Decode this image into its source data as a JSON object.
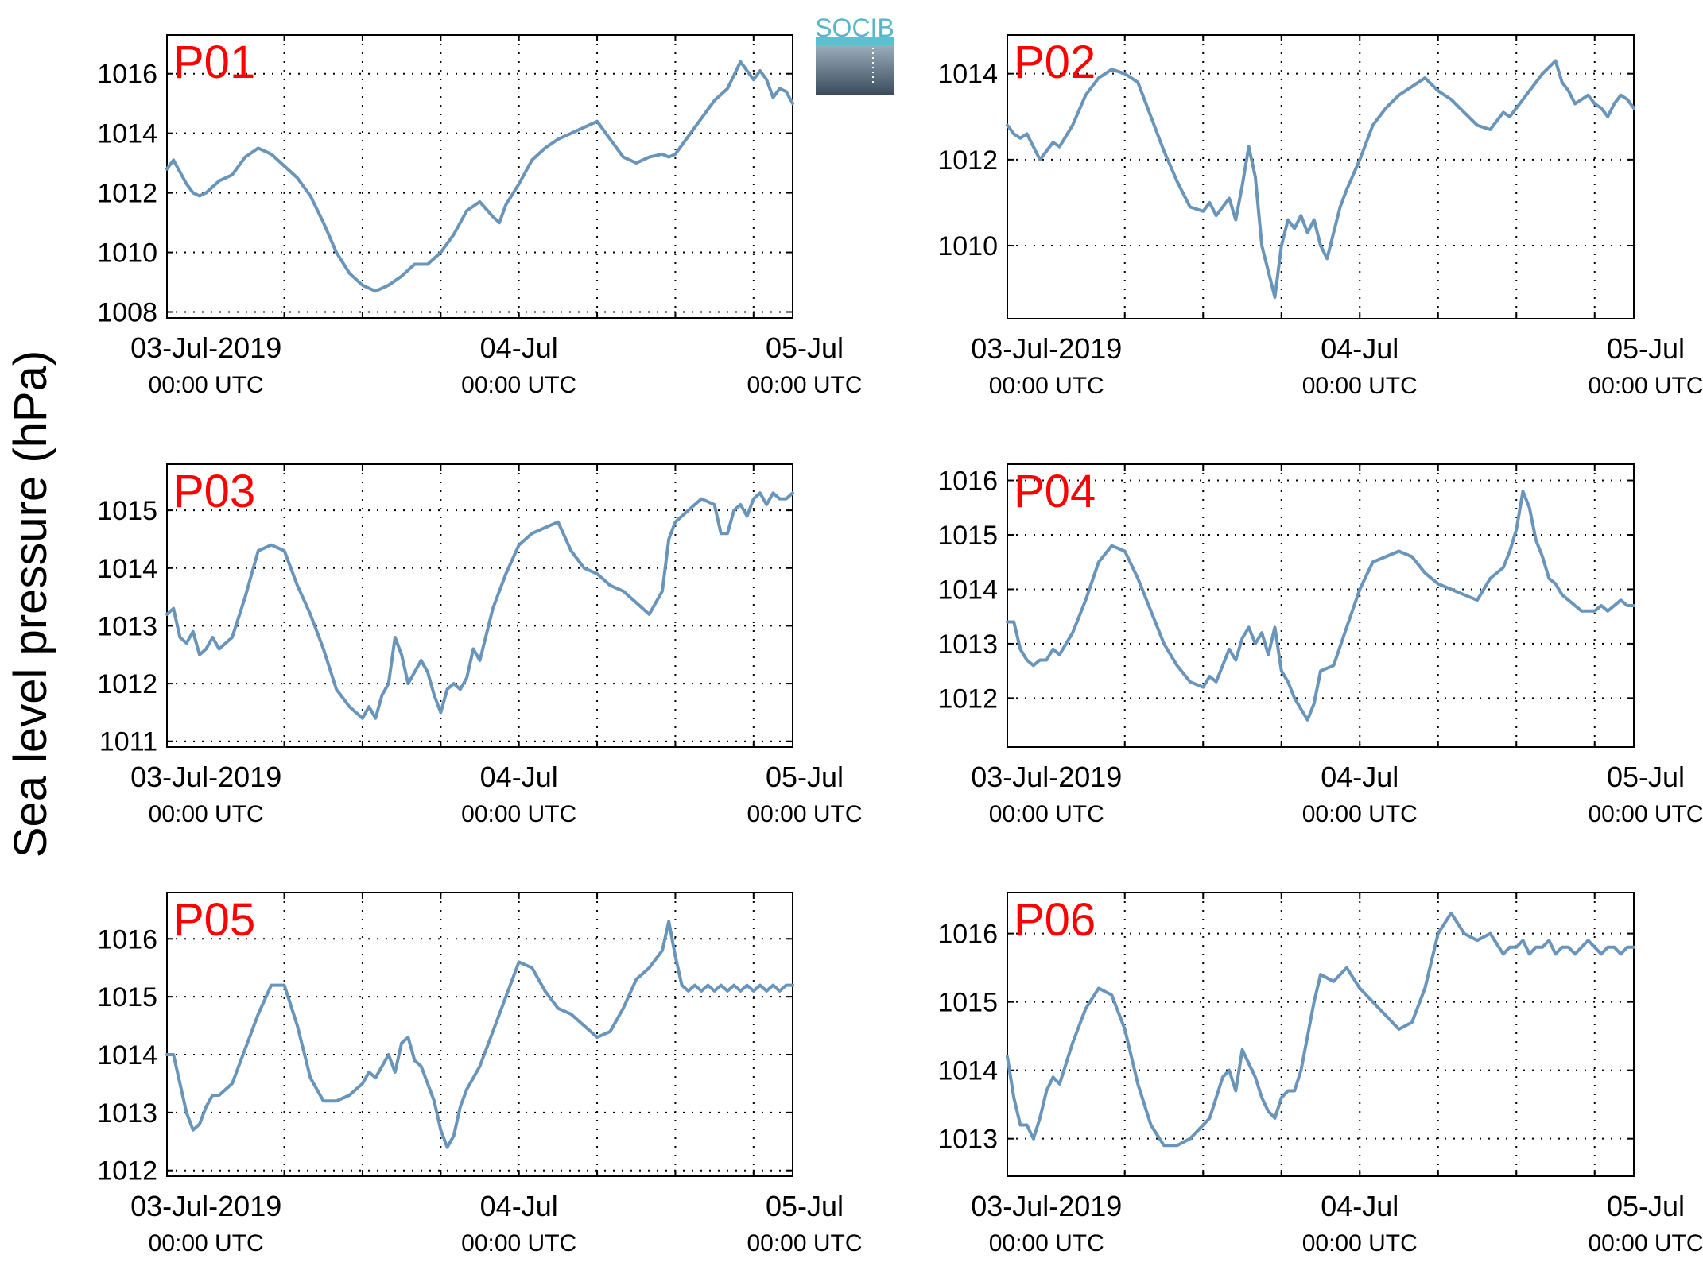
{
  "figure": {
    "ylabel": "Sea level pressure (hPa)",
    "logo_text": "SOCIB",
    "line_color": "#6a95bb",
    "label_color": "#ff0000",
    "x_tick_dates": [
      "03-Jul-2019",
      "04-Jul",
      "05-Jul"
    ],
    "x_tick_times": [
      "00:00 UTC",
      "00:00 UTC",
      "00:00 UTC"
    ]
  },
  "chart_data": [
    {
      "type": "line",
      "title": "P01",
      "xunit": "hours since 03-Jul-2019 00:00 UTC",
      "xlim": [
        -3,
        45
      ],
      "ylim": [
        1007.8,
        1017.3
      ],
      "yticks": [
        1008,
        1010,
        1012,
        1014,
        1016
      ],
      "grid": true,
      "x": [
        -3,
        -2.5,
        -2,
        -1.5,
        -1,
        -0.5,
        0,
        1,
        2,
        3,
        4,
        5,
        6,
        7,
        8,
        9,
        10,
        11,
        12,
        13,
        14,
        15,
        16,
        17,
        18,
        19,
        20,
        21,
        22,
        22.5,
        23,
        24,
        25,
        26,
        27,
        28,
        29,
        30,
        31,
        32,
        33,
        34,
        35,
        35.5,
        36,
        37,
        38,
        39,
        40,
        41,
        42,
        42.5,
        43,
        43.5,
        44,
        44.5,
        45
      ],
      "y": [
        1012.8,
        1013.1,
        1012.7,
        1012.3,
        1012.0,
        1011.9,
        1012.0,
        1012.4,
        1012.6,
        1013.2,
        1013.5,
        1013.3,
        1012.9,
        1012.5,
        1011.9,
        1011.0,
        1010.0,
        1009.3,
        1008.9,
        1008.7,
        1008.9,
        1009.2,
        1009.6,
        1009.6,
        1010.0,
        1010.6,
        1011.4,
        1011.7,
        1011.2,
        1011.0,
        1011.6,
        1012.3,
        1013.1,
        1013.5,
        1013.8,
        1014.0,
        1014.2,
        1014.4,
        1013.8,
        1013.2,
        1013.0,
        1013.2,
        1013.3,
        1013.2,
        1013.3,
        1013.9,
        1014.5,
        1015.1,
        1015.5,
        1016.4,
        1015.8,
        1016.1,
        1015.8,
        1015.2,
        1015.5,
        1015.4,
        1015.0
      ]
    },
    {
      "type": "line",
      "title": "P02",
      "xunit": "hours since 03-Jul-2019 00:00 UTC",
      "xlim": [
        -3,
        45
      ],
      "ylim": [
        1008.3,
        1014.9
      ],
      "yticks": [
        1010,
        1012,
        1014
      ],
      "grid": true,
      "x": [
        -3,
        -2.5,
        -2,
        -1.5,
        -1,
        -0.5,
        0,
        0.5,
        1,
        2,
        3,
        4,
        5,
        6,
        7,
        8,
        9,
        10,
        11,
        12,
        12.5,
        13,
        13.5,
        14,
        14.5,
        15,
        15.5,
        16,
        16.5,
        17,
        17.5,
        18,
        18.5,
        19,
        19.5,
        20,
        20.5,
        21,
        21.5,
        22,
        22.5,
        23,
        24,
        25,
        26,
        27,
        28,
        29,
        30,
        31,
        32,
        33,
        34,
        35,
        35.5,
        36,
        37,
        38,
        39,
        39.5,
        40,
        40.5,
        41,
        41.5,
        42,
        42.5,
        43,
        43.5,
        44,
        44.5,
        45
      ],
      "y": [
        1012.8,
        1012.6,
        1012.5,
        1012.6,
        1012.3,
        1012.0,
        1012.2,
        1012.4,
        1012.3,
        1012.8,
        1013.5,
        1013.9,
        1014.1,
        1014.0,
        1013.8,
        1013.0,
        1012.2,
        1011.5,
        1010.9,
        1010.8,
        1011.0,
        1010.7,
        1010.9,
        1011.1,
        1010.6,
        1011.4,
        1012.3,
        1011.6,
        1010.0,
        1009.4,
        1008.8,
        1010.0,
        1010.6,
        1010.4,
        1010.7,
        1010.3,
        1010.6,
        1010.0,
        1009.7,
        1010.3,
        1010.9,
        1011.3,
        1012.0,
        1012.8,
        1013.2,
        1013.5,
        1013.7,
        1013.9,
        1013.6,
        1013.4,
        1013.1,
        1012.8,
        1012.7,
        1013.1,
        1013.0,
        1013.2,
        1013.6,
        1014.0,
        1014.3,
        1013.8,
        1013.6,
        1013.3,
        1013.4,
        1013.5,
        1013.3,
        1013.2,
        1013.0,
        1013.3,
        1013.5,
        1013.4,
        1013.2
      ]
    },
    {
      "type": "line",
      "title": "P03",
      "xunit": "hours since 03-Jul-2019 00:00 UTC",
      "xlim": [
        -3,
        45
      ],
      "ylim": [
        1010.9,
        1015.8
      ],
      "yticks": [
        1011,
        1012,
        1013,
        1014,
        1015
      ],
      "grid": true,
      "x": [
        -3,
        -2.5,
        -2,
        -1.5,
        -1,
        -0.5,
        0,
        0.5,
        1,
        2,
        3,
        4,
        5,
        6,
        7,
        8,
        9,
        10,
        11,
        12,
        12.5,
        13,
        13.5,
        14,
        14.5,
        15,
        15.5,
        16,
        16.5,
        17,
        17.5,
        18,
        18.5,
        19,
        19.5,
        20,
        20.5,
        21,
        22,
        23,
        24,
        25,
        26,
        27,
        28,
        29,
        30,
        31,
        32,
        33,
        34,
        35,
        35.5,
        36,
        37,
        38,
        39,
        39.5,
        40,
        40.5,
        41,
        41.5,
        42,
        42.5,
        43,
        43.5,
        44,
        44.5,
        45
      ],
      "y": [
        1013.2,
        1013.3,
        1012.8,
        1012.7,
        1012.9,
        1012.5,
        1012.6,
        1012.8,
        1012.6,
        1012.8,
        1013.5,
        1014.3,
        1014.4,
        1014.3,
        1013.7,
        1013.2,
        1012.6,
        1011.9,
        1011.6,
        1011.4,
        1011.6,
        1011.4,
        1011.8,
        1012.0,
        1012.8,
        1012.5,
        1012.0,
        1012.2,
        1012.4,
        1012.2,
        1011.8,
        1011.5,
        1011.9,
        1012.0,
        1011.9,
        1012.1,
        1012.6,
        1012.4,
        1013.3,
        1013.9,
        1014.4,
        1014.6,
        1014.7,
        1014.8,
        1014.3,
        1014.0,
        1013.9,
        1013.7,
        1013.6,
        1013.4,
        1013.2,
        1013.6,
        1014.5,
        1014.8,
        1015.0,
        1015.2,
        1015.1,
        1014.6,
        1014.6,
        1015.0,
        1015.1,
        1014.9,
        1015.2,
        1015.3,
        1015.1,
        1015.3,
        1015.2,
        1015.2,
        1015.3
      ]
    },
    {
      "type": "line",
      "title": "P04",
      "xunit": "hours since 03-Jul-2019 00:00 UTC",
      "xlim": [
        -3,
        45
      ],
      "ylim": [
        1011.1,
        1016.3
      ],
      "yticks": [
        1012,
        1013,
        1014,
        1015,
        1016
      ],
      "grid": true,
      "x": [
        -3,
        -2.5,
        -2,
        -1.5,
        -1,
        -0.5,
        0,
        0.5,
        1,
        2,
        3,
        4,
        5,
        6,
        7,
        8,
        9,
        10,
        11,
        12,
        12.5,
        13,
        13.5,
        14,
        14.5,
        15,
        15.5,
        16,
        16.5,
        17,
        17.5,
        18,
        18.5,
        19,
        19.5,
        20,
        20.5,
        21,
        22,
        23,
        24,
        25,
        26,
        27,
        28,
        29,
        30,
        31,
        32,
        33,
        34,
        35,
        35.5,
        36,
        36.5,
        37,
        37.5,
        38,
        38.5,
        39,
        39.5,
        40,
        40.5,
        41,
        41.5,
        42,
        42.5,
        43,
        43.5,
        44,
        44.5,
        45
      ],
      "y": [
        1013.4,
        1013.4,
        1012.9,
        1012.7,
        1012.6,
        1012.7,
        1012.7,
        1012.9,
        1012.8,
        1013.2,
        1013.8,
        1014.5,
        1014.8,
        1014.7,
        1014.2,
        1013.6,
        1013.0,
        1012.6,
        1012.3,
        1012.2,
        1012.4,
        1012.3,
        1012.6,
        1012.9,
        1012.7,
        1013.1,
        1013.3,
        1013.0,
        1013.2,
        1012.8,
        1013.3,
        1012.5,
        1012.3,
        1012.0,
        1011.8,
        1011.6,
        1011.9,
        1012.5,
        1012.6,
        1013.3,
        1014.0,
        1014.5,
        1014.6,
        1014.7,
        1014.6,
        1014.3,
        1014.1,
        1014.0,
        1013.9,
        1013.8,
        1014.2,
        1014.4,
        1014.7,
        1015.1,
        1015.8,
        1015.5,
        1014.9,
        1014.6,
        1014.2,
        1014.1,
        1013.9,
        1013.8,
        1013.7,
        1013.6,
        1013.6,
        1013.6,
        1013.7,
        1013.6,
        1013.7,
        1013.8,
        1013.7,
        1013.7
      ]
    },
    {
      "type": "line",
      "title": "P05",
      "xunit": "hours since 03-Jul-2019 00:00 UTC",
      "xlim": [
        -3,
        45
      ],
      "ylim": [
        1011.9,
        1016.8
      ],
      "yticks": [
        1012,
        1013,
        1014,
        1015,
        1016
      ],
      "grid": true,
      "x": [
        -3,
        -2.5,
        -2,
        -1.5,
        -1,
        -0.5,
        0,
        0.5,
        1,
        2,
        3,
        4,
        5,
        6,
        7,
        8,
        9,
        10,
        11,
        12,
        12.5,
        13,
        13.5,
        14,
        14.5,
        15,
        15.5,
        16,
        16.5,
        17,
        17.5,
        18,
        18.5,
        19,
        19.5,
        20,
        20.5,
        21,
        22,
        23,
        24,
        25,
        26,
        27,
        28,
        29,
        30,
        31,
        32,
        33,
        34,
        35,
        35.5,
        36,
        36.5,
        37,
        37.5,
        38,
        38.5,
        39,
        39.5,
        40,
        40.5,
        41,
        41.5,
        42,
        42.5,
        43,
        43.5,
        44,
        44.5,
        45
      ],
      "y": [
        1014.0,
        1014.0,
        1013.5,
        1013.0,
        1012.7,
        1012.8,
        1013.1,
        1013.3,
        1013.3,
        1013.5,
        1014.1,
        1014.7,
        1015.2,
        1015.2,
        1014.5,
        1013.6,
        1013.2,
        1013.2,
        1013.3,
        1013.5,
        1013.7,
        1013.6,
        1013.8,
        1014.0,
        1013.7,
        1014.2,
        1014.3,
        1013.9,
        1013.8,
        1013.5,
        1013.2,
        1012.7,
        1012.4,
        1012.6,
        1013.1,
        1013.4,
        1013.6,
        1013.8,
        1014.4,
        1015.0,
        1015.6,
        1015.5,
        1015.1,
        1014.8,
        1014.7,
        1014.5,
        1014.3,
        1014.4,
        1014.8,
        1015.3,
        1015.5,
        1015.8,
        1016.3,
        1015.7,
        1015.2,
        1015.1,
        1015.2,
        1015.1,
        1015.2,
        1015.1,
        1015.2,
        1015.1,
        1015.2,
        1015.1,
        1015.2,
        1015.1,
        1015.2,
        1015.1,
        1015.2,
        1015.1,
        1015.2,
        1015.2
      ]
    },
    {
      "type": "line",
      "title": "P06",
      "xunit": "hours since 03-Jul-2019 00:00 UTC",
      "xlim": [
        -3,
        45
      ],
      "ylim": [
        1012.45,
        1016.6
      ],
      "yticks": [
        1013,
        1014,
        1015,
        1016
      ],
      "grid": true,
      "x": [
        -3,
        -2.5,
        -2,
        -1.5,
        -1,
        -0.5,
        0,
        0.5,
        1,
        2,
        3,
        4,
        5,
        6,
        7,
        8,
        9,
        10,
        11,
        12,
        12.5,
        13,
        13.5,
        14,
        14.5,
        15,
        15.5,
        16,
        16.5,
        17,
        17.5,
        18,
        18.5,
        19,
        19.5,
        20,
        20.5,
        21,
        22,
        23,
        24,
        25,
        26,
        27,
        28,
        29,
        30,
        31,
        32,
        33,
        34,
        35,
        35.5,
        36,
        36.5,
        37,
        37.5,
        38,
        38.5,
        39,
        39.5,
        40,
        40.5,
        41,
        41.5,
        42,
        42.5,
        43,
        43.5,
        44,
        44.5,
        45
      ],
      "y": [
        1014.2,
        1013.6,
        1013.2,
        1013.2,
        1013.0,
        1013.3,
        1013.7,
        1013.9,
        1013.8,
        1014.4,
        1014.9,
        1015.2,
        1015.1,
        1014.6,
        1013.8,
        1013.2,
        1012.9,
        1012.9,
        1013.0,
        1013.2,
        1013.3,
        1013.6,
        1013.9,
        1014.0,
        1013.7,
        1014.3,
        1014.1,
        1013.9,
        1013.6,
        1013.4,
        1013.3,
        1013.6,
        1013.7,
        1013.7,
        1014.0,
        1014.5,
        1015.0,
        1015.4,
        1015.3,
        1015.5,
        1015.2,
        1015.0,
        1014.8,
        1014.6,
        1014.7,
        1015.2,
        1016.0,
        1016.3,
        1016.0,
        1015.9,
        1016.0,
        1015.7,
        1015.8,
        1015.8,
        1015.9,
        1015.7,
        1015.8,
        1015.8,
        1015.9,
        1015.7,
        1015.8,
        1015.8,
        1015.7,
        1015.8,
        1015.9,
        1015.8,
        1015.7,
        1015.8,
        1015.8,
        1015.7,
        1015.8,
        1015.8
      ]
    }
  ]
}
